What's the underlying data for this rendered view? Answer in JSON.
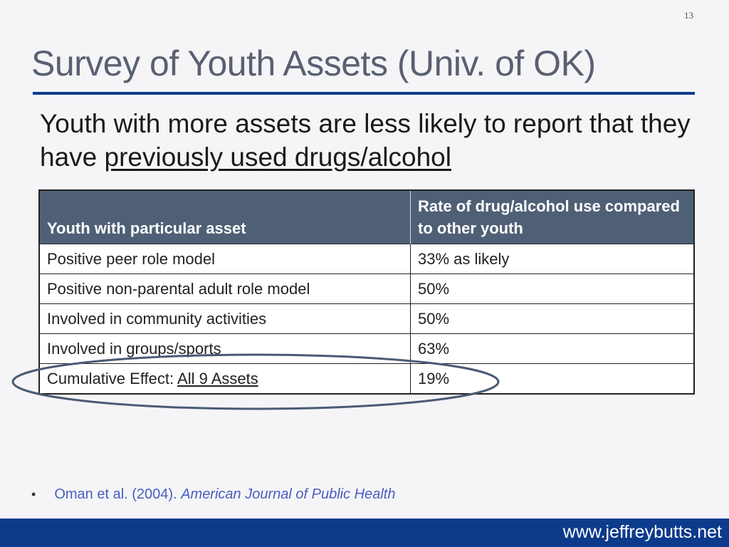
{
  "slide": {
    "number": "13",
    "title": "Survey of Youth Assets (Univ. of OK)",
    "subtitle_part1": "Youth with more assets are less likely to report that they have ",
    "subtitle_underlined": "previously used drugs/alcohol"
  },
  "table": {
    "headers": [
      "Youth with particular asset",
      "Rate of drug/alcohol use compared to other youth"
    ],
    "rows": [
      {
        "asset": "Positive peer role model",
        "rate": "33% as likely"
      },
      {
        "asset": "Positive non-parental adult role model",
        "rate": "50%"
      },
      {
        "asset": "Involved in community activities",
        "rate": "50%"
      },
      {
        "asset": "Involved in groups/sports",
        "rate": "63%"
      },
      {
        "asset_prefix": "Cumulative Effect: ",
        "asset_underlined": "All 9 Assets",
        "rate": "19%"
      }
    ]
  },
  "highlight": {
    "shape": "ellipse",
    "color": "#4a5a74"
  },
  "citation": {
    "authors": "Oman et al. (2004).",
    "journal": "American Journal of Public Health"
  },
  "footer": {
    "url": "www.jeffreybutts.net",
    "bar_color": "#0d3b8c"
  }
}
